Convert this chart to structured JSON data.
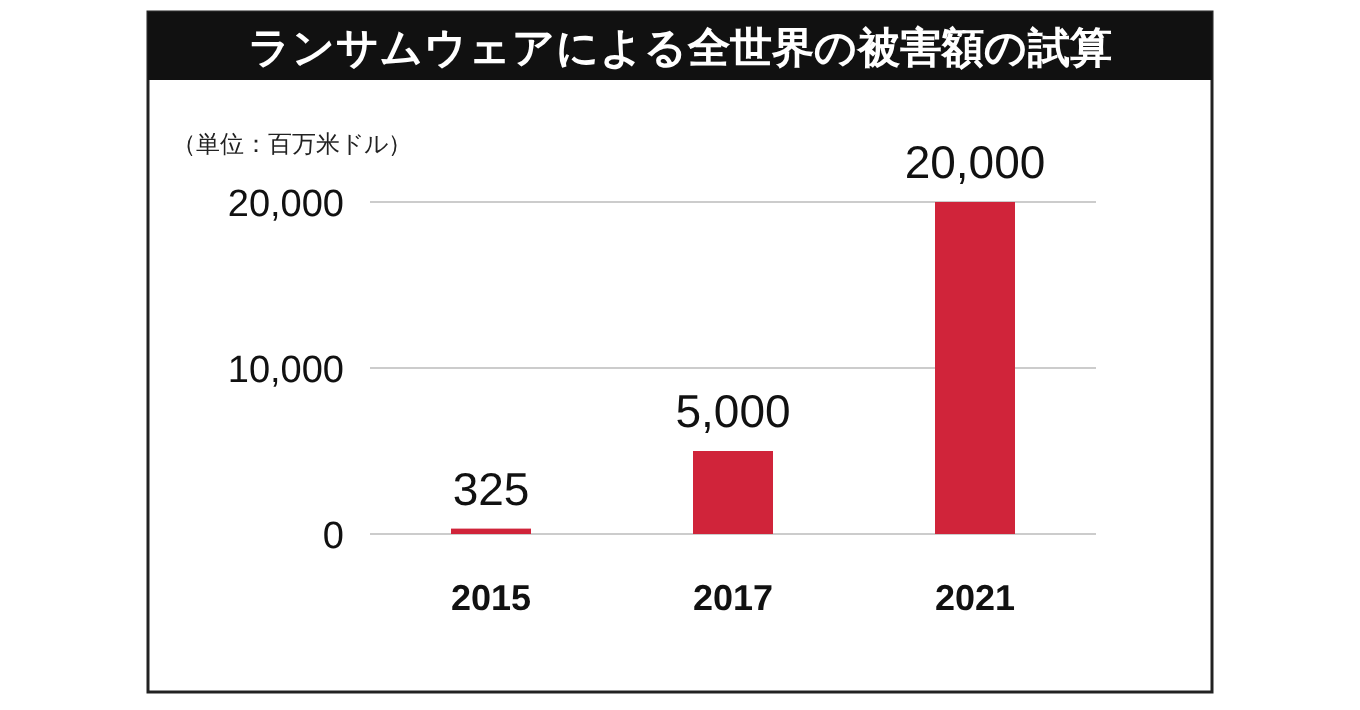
{
  "chart_data": {
    "type": "bar",
    "title": "ランサムウェアによる全世界の被害額の試算",
    "subtitle": "（単位：百万米ドル）",
    "categories": [
      "2015",
      "2017",
      "2021"
    ],
    "values": [
      325,
      5000,
      20000
    ],
    "color": "#d0243a",
    "ylim": [
      0,
      20000
    ],
    "yticks": [
      {
        "value": 0,
        "label": "0"
      },
      {
        "value": 10000,
        "label": "10,000"
      },
      {
        "value": 20000,
        "label": "20,000"
      }
    ],
    "value_labels": [
      "325",
      "5,000",
      "20,000"
    ],
    "grid": "y"
  }
}
